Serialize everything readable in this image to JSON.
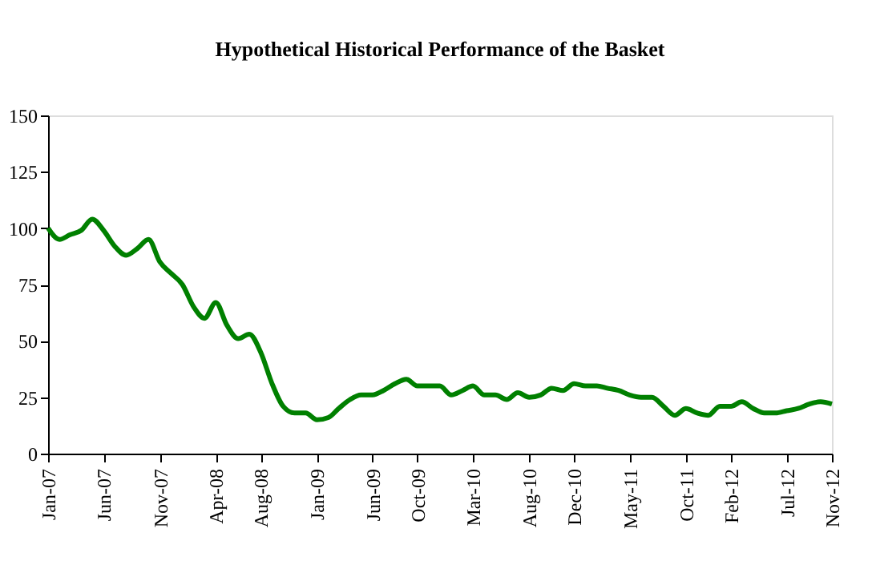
{
  "chart_data": {
    "type": "line",
    "title": "Hypothetical Historical Performance of the Basket",
    "x": [
      "2007-01",
      "2007-02",
      "2007-03",
      "2007-04",
      "2007-05",
      "2007-06",
      "2007-07",
      "2007-08",
      "2007-09",
      "2007-10",
      "2007-11",
      "2007-12",
      "2008-01",
      "2008-02",
      "2008-03",
      "2008-04",
      "2008-05",
      "2008-06",
      "2008-07",
      "2008-08",
      "2008-09",
      "2008-10",
      "2008-11",
      "2008-12",
      "2009-01",
      "2009-02",
      "2009-03",
      "2009-04",
      "2009-05",
      "2009-06",
      "2009-07",
      "2009-08",
      "2009-09",
      "2009-10",
      "2009-11",
      "2009-12",
      "2010-01",
      "2010-02",
      "2010-03",
      "2010-04",
      "2010-05",
      "2010-06",
      "2010-07",
      "2010-08",
      "2010-09",
      "2010-10",
      "2010-11",
      "2010-12",
      "2011-01",
      "2011-02",
      "2011-03",
      "2011-04",
      "2011-05",
      "2011-06",
      "2011-07",
      "2011-08",
      "2011-09",
      "2011-10",
      "2011-11",
      "2011-12",
      "2012-01",
      "2012-02",
      "2012-03",
      "2012-04",
      "2012-05",
      "2012-06",
      "2012-07",
      "2012-08",
      "2012-09",
      "2012-10",
      "2012-11"
    ],
    "series": [
      {
        "color": "#008000",
        "values": [
          100,
          95,
          97,
          99,
          104,
          99,
          92,
          88,
          91,
          95,
          85,
          80,
          75,
          65,
          60,
          67,
          57,
          51,
          53,
          45,
          31,
          21,
          18,
          18,
          15,
          16,
          20,
          24,
          26,
          26,
          28,
          31,
          33,
          30,
          30,
          30,
          26,
          28,
          30,
          26,
          26,
          24,
          27,
          25,
          26,
          29,
          28,
          31,
          30,
          30,
          29,
          28,
          26,
          25,
          25,
          21,
          17,
          20,
          18,
          17,
          21,
          21,
          23,
          20,
          18,
          18,
          19,
          20,
          22,
          23,
          22
        ]
      }
    ],
    "xlim": [
      "2007-01",
      "2012-11"
    ],
    "xticks": [
      {
        "value": "2007-01",
        "label": "Jan-07"
      },
      {
        "value": "2007-06",
        "label": "Jun-07"
      },
      {
        "value": "2007-11",
        "label": "Nov-07"
      },
      {
        "value": "2008-04",
        "label": "Apr-08"
      },
      {
        "value": "2008-08",
        "label": "Aug-08"
      },
      {
        "value": "2009-01",
        "label": "Jan-09"
      },
      {
        "value": "2009-06",
        "label": "Jun-09"
      },
      {
        "value": "2009-10",
        "label": "Oct-09"
      },
      {
        "value": "2010-03",
        "label": "Mar-10"
      },
      {
        "value": "2010-08",
        "label": "Aug-10"
      },
      {
        "value": "2010-12",
        "label": "Dec-10"
      },
      {
        "value": "2011-05",
        "label": "May-11"
      },
      {
        "value": "2011-10",
        "label": "Oct-11"
      },
      {
        "value": "2012-02",
        "label": "Feb-12"
      },
      {
        "value": "2012-07",
        "label": "Jul-12"
      },
      {
        "value": "2012-11",
        "label": "Nov-12"
      }
    ],
    "ylim": [
      0,
      150
    ],
    "yticks": [
      0,
      25,
      50,
      75,
      100,
      125,
      150
    ],
    "grid": false,
    "marker": "none",
    "line_style": "solid"
  }
}
